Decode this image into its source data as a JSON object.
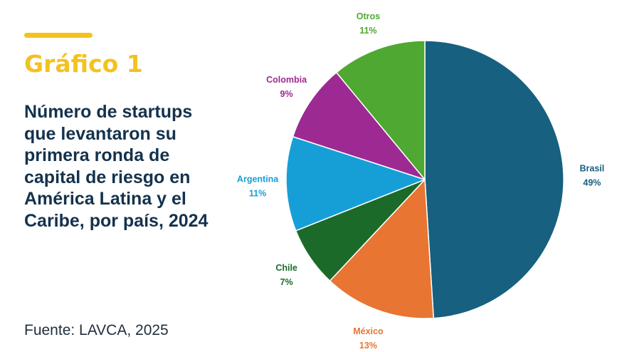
{
  "figure_label": "Gráfico 1",
  "source": "Fuente: LAVCA, 2025",
  "colors": {
    "accent": "#f4c21e",
    "title": "#14324d"
  },
  "chart_data": {
    "type": "pie",
    "title": "Número de startups que levantaron su primera ronda de capital de riesgo en América Latina y el Caribe, por país, 2024",
    "unit": "%",
    "start_angle_deg": 0,
    "direction": "clockwise",
    "slices": [
      {
        "label": "Brasil",
        "value": 49,
        "value_label": "49%",
        "color": "#17607f"
      },
      {
        "label": "México",
        "value": 13,
        "value_label": "13%",
        "color": "#e87532"
      },
      {
        "label": "Chile",
        "value": 7,
        "value_label": "7%",
        "color": "#1c6a29"
      },
      {
        "label": "Argentina",
        "value": 11,
        "value_label": "11%",
        "color": "#169fd7"
      },
      {
        "label": "Colombia",
        "value": 9,
        "value_label": "9%",
        "color": "#9c2a92"
      },
      {
        "label": "Otros",
        "value": 11,
        "value_label": "11%",
        "color": "#4fa832"
      }
    ]
  }
}
